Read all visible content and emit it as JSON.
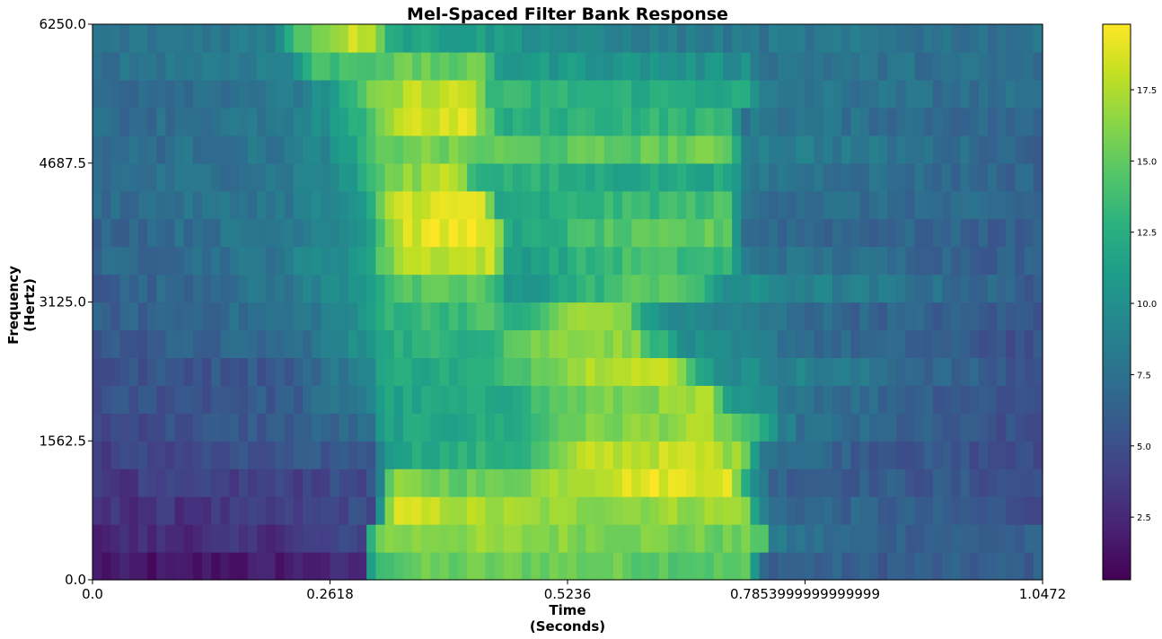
{
  "chart_data": {
    "type": "heatmap",
    "title": "Mel-Spaced Filter Bank Response",
    "xlabel_line1": "Time",
    "xlabel_line2": "(Seconds)",
    "ylabel_line1": "Frequency",
    "ylabel_line2": "(Hertz)",
    "xlim": [
      0.0,
      1.0472
    ],
    "ylim": [
      0.0,
      6250.0
    ],
    "x_ticks": [
      0.0,
      0.2618,
      0.5236,
      0.7853999999999999,
      1.0472
    ],
    "x_tick_labels": [
      "0.0",
      "0.2618",
      "0.5236",
      "0.7853999999999999",
      "1.0472"
    ],
    "y_ticks": [
      0.0,
      1562.5,
      3125.0,
      4687.5,
      6250.0
    ],
    "y_tick_labels": [
      "0.0",
      "1562.5",
      "3125.0",
      "4687.5",
      "6250.0"
    ],
    "n_time_frames": 104,
    "n_filters": 20,
    "colormap": "viridis",
    "colorbar_range": [
      0.3,
      19.8
    ],
    "colorbar_ticks": [
      2.5,
      5.0,
      7.5,
      10.0,
      12.5,
      15.0,
      17.5
    ],
    "colorbar_tick_labels": [
      "2.5",
      "5.0",
      "7.5",
      "10.0",
      "12.5",
      "15.0",
      "17.5"
    ],
    "band_profiles": [
      {
        "filter": 0,
        "values": [
          [
            0,
            1.5
          ],
          [
            0.1,
            1.2
          ],
          [
            0.2,
            1.8
          ],
          [
            0.3,
            2.5
          ],
          [
            0.31,
            14
          ],
          [
            0.35,
            15
          ],
          [
            0.5,
            15.5
          ],
          [
            0.72,
            14.5
          ],
          [
            0.74,
            6.5
          ],
          [
            0.85,
            6
          ],
          [
            1.0472,
            6
          ]
        ]
      },
      {
        "filter": 1,
        "values": [
          [
            0,
            2.5
          ],
          [
            0.2,
            3
          ],
          [
            0.3,
            4.5
          ],
          [
            0.31,
            16
          ],
          [
            0.4,
            16.5
          ],
          [
            0.6,
            16
          ],
          [
            0.74,
            15
          ],
          [
            0.75,
            8
          ],
          [
            0.85,
            6.5
          ],
          [
            1.0472,
            6
          ]
        ]
      },
      {
        "filter": 2,
        "values": [
          [
            0,
            3
          ],
          [
            0.2,
            3.5
          ],
          [
            0.31,
            5
          ],
          [
            0.33,
            18.5
          ],
          [
            0.44,
            17
          ],
          [
            0.52,
            16.5
          ],
          [
            0.72,
            17
          ],
          [
            0.73,
            11
          ],
          [
            0.75,
            7
          ],
          [
            1.0472,
            5
          ]
        ]
      },
      {
        "filter": 3,
        "values": [
          [
            0,
            3.5
          ],
          [
            0.2,
            4
          ],
          [
            0.31,
            5
          ],
          [
            0.33,
            16
          ],
          [
            0.44,
            15
          ],
          [
            0.52,
            17.5
          ],
          [
            0.6,
            19
          ],
          [
            0.7,
            19
          ],
          [
            0.72,
            12
          ],
          [
            0.75,
            6.5
          ],
          [
            1.0472,
            5
          ]
        ]
      },
      {
        "filter": 4,
        "values": [
          [
            0,
            4
          ],
          [
            0.2,
            5
          ],
          [
            0.31,
            6
          ],
          [
            0.33,
            12
          ],
          [
            0.48,
            13
          ],
          [
            0.55,
            18
          ],
          [
            0.68,
            18
          ],
          [
            0.72,
            16
          ],
          [
            0.74,
            8
          ],
          [
            0.85,
            6
          ],
          [
            1.0472,
            4.5
          ]
        ]
      },
      {
        "filter": 5,
        "values": [
          [
            0,
            4.5
          ],
          [
            0.22,
            6
          ],
          [
            0.31,
            7
          ],
          [
            0.32,
            11.5
          ],
          [
            0.48,
            12.5
          ],
          [
            0.52,
            15.5
          ],
          [
            0.68,
            17
          ],
          [
            0.72,
            14
          ],
          [
            0.75,
            10
          ],
          [
            0.78,
            7.5
          ],
          [
            1.0472,
            4.5
          ]
        ]
      },
      {
        "filter": 6,
        "values": [
          [
            0,
            5
          ],
          [
            0.22,
            6
          ],
          [
            0.3,
            8.5
          ],
          [
            0.32,
            11.5
          ],
          [
            0.45,
            12
          ],
          [
            0.52,
            15
          ],
          [
            0.68,
            17
          ],
          [
            0.7,
            11
          ],
          [
            0.72,
            10
          ],
          [
            0.8,
            7.5
          ],
          [
            1.0472,
            5
          ]
        ]
      },
      {
        "filter": 7,
        "values": [
          [
            0,
            5
          ],
          [
            0.22,
            6
          ],
          [
            0.3,
            9
          ],
          [
            0.32,
            12
          ],
          [
            0.44,
            12.5
          ],
          [
            0.5,
            16
          ],
          [
            0.58,
            18.5
          ],
          [
            0.64,
            17.5
          ],
          [
            0.68,
            11
          ],
          [
            0.7,
            10
          ],
          [
            1.0472,
            5
          ]
        ]
      },
      {
        "filter": 8,
        "values": [
          [
            0,
            5.5
          ],
          [
            0.22,
            7
          ],
          [
            0.3,
            10
          ],
          [
            0.32,
            12.5
          ],
          [
            0.44,
            13
          ],
          [
            0.46,
            15
          ],
          [
            0.54,
            17
          ],
          [
            0.6,
            16
          ],
          [
            0.65,
            10
          ],
          [
            0.8,
            7
          ],
          [
            1.0472,
            5
          ]
        ]
      },
      {
        "filter": 9,
        "values": [
          [
            0,
            6
          ],
          [
            0.22,
            7.5
          ],
          [
            0.3,
            10
          ],
          [
            0.32,
            13
          ],
          [
            0.44,
            14
          ],
          [
            0.48,
            12
          ],
          [
            0.52,
            16.5
          ],
          [
            0.58,
            17
          ],
          [
            0.62,
            10
          ],
          [
            0.8,
            7
          ],
          [
            1.0472,
            5.5
          ]
        ]
      },
      {
        "filter": 10,
        "values": [
          [
            0,
            6
          ],
          [
            0.22,
            8
          ],
          [
            0.3,
            11
          ],
          [
            0.33,
            14
          ],
          [
            0.43,
            15
          ],
          [
            0.46,
            10
          ],
          [
            0.52,
            12
          ],
          [
            0.58,
            14
          ],
          [
            0.64,
            15.5
          ],
          [
            0.7,
            10
          ],
          [
            1.0472,
            6
          ]
        ]
      },
      {
        "filter": 11,
        "values": [
          [
            0,
            6.5
          ],
          [
            0.2,
            8
          ],
          [
            0.3,
            11
          ],
          [
            0.34,
            18
          ],
          [
            0.44,
            18
          ],
          [
            0.46,
            11
          ],
          [
            0.6,
            14
          ],
          [
            0.7,
            13
          ],
          [
            0.72,
            8
          ],
          [
            1.0472,
            6
          ]
        ]
      },
      {
        "filter": 12,
        "values": [
          [
            0,
            6.5
          ],
          [
            0.2,
            8
          ],
          [
            0.3,
            10.5
          ],
          [
            0.34,
            18.5
          ],
          [
            0.44,
            19.5
          ],
          [
            0.46,
            11
          ],
          [
            0.55,
            14
          ],
          [
            0.7,
            15
          ],
          [
            0.72,
            7
          ],
          [
            1.0472,
            6
          ]
        ]
      },
      {
        "filter": 13,
        "values": [
          [
            0,
            7
          ],
          [
            0.2,
            8
          ],
          [
            0.3,
            10
          ],
          [
            0.33,
            18.5
          ],
          [
            0.43,
            19
          ],
          [
            0.45,
            11
          ],
          [
            0.55,
            13
          ],
          [
            0.7,
            14
          ],
          [
            0.72,
            7.5
          ],
          [
            1.0472,
            6.5
          ]
        ]
      },
      {
        "filter": 14,
        "values": [
          [
            0,
            7
          ],
          [
            0.2,
            8
          ],
          [
            0.28,
            10
          ],
          [
            0.32,
            15
          ],
          [
            0.4,
            18.5
          ],
          [
            0.42,
            13
          ],
          [
            0.55,
            12
          ],
          [
            0.7,
            12
          ],
          [
            0.72,
            8
          ],
          [
            1.0472,
            6.5
          ]
        ]
      },
      {
        "filter": 15,
        "values": [
          [
            0,
            7
          ],
          [
            0.22,
            8
          ],
          [
            0.28,
            10.5
          ],
          [
            0.31,
            14
          ],
          [
            0.35,
            16
          ],
          [
            0.43,
            15
          ],
          [
            0.5,
            14.5
          ],
          [
            0.7,
            15.5
          ],
          [
            0.72,
            9
          ],
          [
            1.0472,
            6.5
          ]
        ]
      },
      {
        "filter": 16,
        "values": [
          [
            0,
            7
          ],
          [
            0.22,
            8
          ],
          [
            0.28,
            11
          ],
          [
            0.31,
            15
          ],
          [
            0.34,
            18.5
          ],
          [
            0.42,
            18.5
          ],
          [
            0.45,
            12
          ],
          [
            0.55,
            13
          ],
          [
            0.7,
            13
          ],
          [
            0.72,
            8
          ],
          [
            1.0472,
            6.5
          ]
        ]
      },
      {
        "filter": 17,
        "values": [
          [
            0,
            7
          ],
          [
            0.22,
            8
          ],
          [
            0.28,
            12
          ],
          [
            0.31,
            15.5
          ],
          [
            0.36,
            18
          ],
          [
            0.42,
            18
          ],
          [
            0.44,
            13
          ],
          [
            0.72,
            12
          ],
          [
            0.74,
            8
          ],
          [
            1.0472,
            7
          ]
        ]
      },
      {
        "filter": 18,
        "values": [
          [
            0,
            7.5
          ],
          [
            0.22,
            9
          ],
          [
            0.24,
            13.5
          ],
          [
            0.3,
            14.5
          ],
          [
            0.33,
            15
          ],
          [
            0.43,
            15
          ],
          [
            0.45,
            11
          ],
          [
            0.72,
            10
          ],
          [
            0.74,
            8
          ],
          [
            1.0472,
            7
          ]
        ]
      },
      {
        "filter": 19,
        "values": [
          [
            0,
            7.5
          ],
          [
            0.2,
            8.5
          ],
          [
            0.22,
            14
          ],
          [
            0.28,
            18
          ],
          [
            0.31,
            18.5
          ],
          [
            0.33,
            12
          ],
          [
            0.45,
            11
          ],
          [
            0.55,
            9
          ],
          [
            0.72,
            8
          ],
          [
            1.0472,
            7.5
          ]
        ]
      }
    ]
  }
}
